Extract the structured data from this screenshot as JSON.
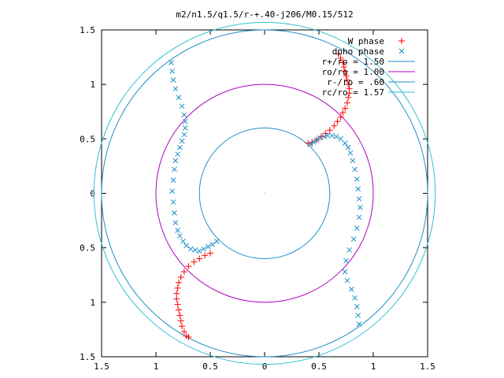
{
  "chart_data": {
    "type": "scatter",
    "title": "m2/n1.5/q1.5/r-+.40-j206/M0.15/512",
    "xlabel": "",
    "ylabel": "",
    "xlim": [
      -1.5,
      1.5
    ],
    "ylim": [
      -1.5,
      1.5
    ],
    "x_tick_values": [
      -1.5,
      -1,
      -0.5,
      0,
      0.5,
      1,
      1.5
    ],
    "x_tick_labels": [
      "1.5",
      "1",
      "0.5",
      "0",
      "0.5",
      "1",
      "1.5"
    ],
    "y_tick_values": [
      1.5,
      1,
      0.5,
      0,
      -0.5,
      -1,
      -1.5
    ],
    "y_tick_labels": [
      "1.5",
      "1",
      "0.5",
      "0",
      "0.5",
      "1",
      "1.5"
    ],
    "grid": false,
    "legend_position": "top-right",
    "circles": [
      {
        "name": "r+/ro = 1.50",
        "radius": 1.5,
        "color": "#1f8fc8"
      },
      {
        "name": "ro/ro = 1.00",
        "radius": 1.0,
        "color": "#b000c0"
      },
      {
        "name": "r-/ro = .60",
        "radius": 0.6,
        "color": "#1f8fc8"
      },
      {
        "name": "rc/ro = 1.57",
        "radius": 1.57,
        "color": "#30c0d0"
      }
    ],
    "series": [
      {
        "name": "W phase",
        "marker": "+",
        "color": "#ff0000",
        "points": [
          [
            0.4,
            0.46
          ],
          [
            0.44,
            0.47
          ],
          [
            0.48,
            0.49
          ],
          [
            0.52,
            0.52
          ],
          [
            0.56,
            0.55
          ],
          [
            0.6,
            0.58
          ],
          [
            0.64,
            0.62
          ],
          [
            0.67,
            0.66
          ],
          [
            0.7,
            0.7
          ],
          [
            0.72,
            0.74
          ],
          [
            0.74,
            0.78
          ],
          [
            0.76,
            0.83
          ],
          [
            0.77,
            0.88
          ],
          [
            0.78,
            0.92
          ],
          [
            0.78,
            0.96
          ],
          [
            0.77,
            1.0
          ],
          [
            0.76,
            1.04
          ],
          [
            0.75,
            1.08
          ],
          [
            0.74,
            1.12
          ],
          [
            0.73,
            1.16
          ],
          [
            0.72,
            1.2
          ],
          [
            0.7,
            1.24
          ],
          [
            0.68,
            1.28
          ],
          [
            -0.5,
            -0.55
          ],
          [
            -0.55,
            -0.57
          ],
          [
            -0.6,
            -0.6
          ],
          [
            -0.65,
            -0.63
          ],
          [
            -0.7,
            -0.67
          ],
          [
            -0.74,
            -0.72
          ],
          [
            -0.77,
            -0.77
          ],
          [
            -0.79,
            -0.82
          ],
          [
            -0.8,
            -0.87
          ],
          [
            -0.81,
            -0.92
          ],
          [
            -0.81,
            -0.97
          ],
          [
            -0.8,
            -1.02
          ],
          [
            -0.79,
            -1.07
          ],
          [
            -0.78,
            -1.12
          ],
          [
            -0.77,
            -1.17
          ],
          [
            -0.76,
            -1.22
          ],
          [
            -0.74,
            -1.27
          ],
          [
            -0.72,
            -1.31
          ],
          [
            -0.7,
            -1.32
          ]
        ]
      },
      {
        "name": "dpho phase",
        "marker": "x",
        "color": "#1f8fc8",
        "points": [
          [
            0.42,
            0.45
          ],
          [
            0.45,
            0.47
          ],
          [
            0.48,
            0.49
          ],
          [
            0.51,
            0.51
          ],
          [
            0.55,
            0.52
          ],
          [
            0.58,
            0.53
          ],
          [
            0.62,
            0.53
          ],
          [
            0.66,
            0.52
          ],
          [
            0.7,
            0.5
          ],
          [
            0.74,
            0.46
          ],
          [
            0.77,
            0.42
          ],
          [
            0.79,
            0.37
          ],
          [
            0.81,
            0.3
          ],
          [
            0.83,
            0.22
          ],
          [
            0.85,
            0.13
          ],
          [
            0.86,
            0.04
          ],
          [
            0.87,
            -0.05
          ],
          [
            0.88,
            -0.13
          ],
          [
            0.87,
            -0.22
          ],
          [
            0.85,
            -0.32
          ],
          [
            0.82,
            -0.42
          ],
          [
            0.78,
            -0.52
          ],
          [
            0.75,
            -0.62
          ],
          [
            0.74,
            -0.72
          ],
          [
            0.76,
            -0.8
          ],
          [
            0.8,
            -0.88
          ],
          [
            0.83,
            -0.96
          ],
          [
            0.85,
            -1.04
          ],
          [
            0.86,
            -1.12
          ],
          [
            0.87,
            -1.2
          ],
          [
            -0.44,
            -0.44
          ],
          [
            -0.48,
            -0.47
          ],
          [
            -0.52,
            -0.49
          ],
          [
            -0.56,
            -0.51
          ],
          [
            -0.6,
            -0.53
          ],
          [
            -0.64,
            -0.52
          ],
          [
            -0.68,
            -0.51
          ],
          [
            -0.72,
            -0.48
          ],
          [
            -0.75,
            -0.44
          ],
          [
            -0.78,
            -0.39
          ],
          [
            -0.8,
            -0.34
          ],
          [
            -0.82,
            -0.27
          ],
          [
            -0.83,
            -0.18
          ],
          [
            -0.84,
            -0.08
          ],
          [
            -0.85,
            0.02
          ],
          [
            -0.84,
            0.12
          ],
          [
            -0.83,
            0.22
          ],
          [
            -0.82,
            0.3
          ],
          [
            -0.8,
            0.36
          ],
          [
            -0.78,
            0.42
          ],
          [
            -0.76,
            0.48
          ],
          [
            -0.74,
            0.54
          ],
          [
            -0.73,
            0.6
          ],
          [
            -0.73,
            0.66
          ],
          [
            -0.74,
            0.72
          ],
          [
            -0.76,
            0.8
          ],
          [
            -0.79,
            0.88
          ],
          [
            -0.82,
            0.96
          ],
          [
            -0.84,
            1.04
          ],
          [
            -0.85,
            1.12
          ],
          [
            -0.86,
            1.2
          ]
        ]
      }
    ]
  }
}
